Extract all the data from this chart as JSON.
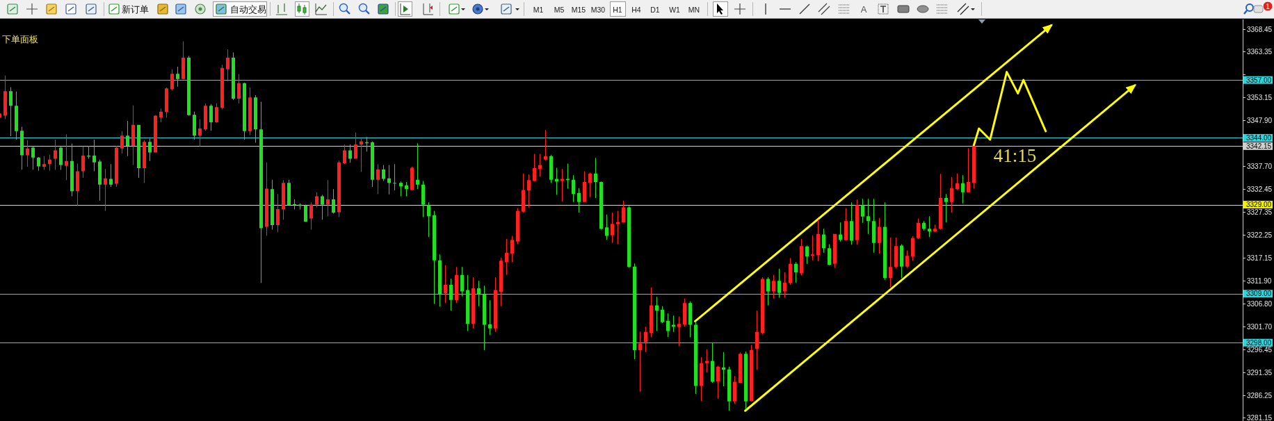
{
  "chart_data": [
    {
      "type": "other",
      "annotations": [
        "新订单",
        "自动交易",
        "M1",
        "M5",
        "M15",
        "M30",
        "H1",
        "H4",
        "D1",
        "W1",
        "MN",
        "A",
        "1"
      ]
    },
    {
      "type": "candlestick",
      "categories": [
        null,
        null,
        null,
        null,
        null,
        null,
        null,
        null,
        null,
        null,
        null,
        null,
        null,
        null,
        null,
        null,
        null,
        null,
        null,
        null,
        null,
        null,
        null,
        null,
        null,
        null,
        null,
        null,
        null,
        null,
        null,
        null,
        null,
        null,
        null,
        null,
        null,
        null,
        null,
        null,
        null,
        null,
        null,
        null,
        null,
        null,
        null,
        null,
        null,
        null,
        null,
        null,
        null,
        null,
        null,
        null,
        null,
        null,
        null,
        null,
        null,
        null,
        null,
        null,
        null,
        null,
        null,
        null,
        null,
        null,
        null,
        null,
        null,
        null,
        null,
        null,
        null,
        null,
        null,
        null,
        null,
        null,
        null,
        null,
        null,
        null,
        null,
        null,
        null,
        null,
        null,
        null,
        null,
        null,
        null,
        null,
        null,
        null,
        null,
        null,
        null,
        null,
        null,
        null,
        null,
        null,
        null,
        null,
        null,
        null,
        null,
        null,
        null,
        null,
        null,
        null,
        null,
        null,
        null,
        null,
        null,
        null,
        null,
        null,
        null,
        null,
        null,
        null,
        null,
        null,
        null,
        null,
        null,
        null,
        null,
        null,
        null,
        null,
        null,
        null,
        null,
        null,
        null,
        null,
        null,
        null,
        null,
        null,
        null,
        null,
        null,
        null,
        null,
        null,
        null,
        null,
        null,
        null,
        null,
        null,
        null,
        null,
        null,
        null,
        null,
        null,
        null,
        null,
        null,
        null,
        null,
        null,
        null,
        null,
        null,
        null,
        null,
        null,
        null,
        null,
        null,
        null,
        null,
        null,
        null,
        null,
        null,
        null,
        null,
        null,
        null,
        null,
        null,
        null,
        null,
        null,
        null,
        null,
        null,
        null,
        null,
        null,
        null,
        null,
        null,
        null,
        null,
        null,
        null,
        null,
        null,
        null,
        null,
        null,
        null,
        null,
        null,
        null,
        null,
        null,
        null,
        null,
        null,
        null
      ],
      "ohlc": [
        [
          3348.5,
          3349.5,
          3348.5,
          3349.5
        ],
        [
          3349.0,
          3358.0,
          3348.2,
          3354.5
        ],
        [
          3354.5,
          3355.4,
          3344.4,
          3351.2
        ],
        [
          3351.2,
          3354.4,
          3343.6,
          3345.5
        ],
        [
          3345.6,
          3346.5,
          3336.9,
          3340.1
        ],
        [
          3340.1,
          3343.5,
          3337.5,
          3341.6
        ],
        [
          3341.8,
          3342.1,
          3336.9,
          3339.6
        ],
        [
          3339.6,
          3339.7,
          3336.6,
          3337.6
        ],
        [
          3337.5,
          3339.9,
          3336.8,
          3338.1
        ],
        [
          3338.1,
          3340.2,
          3336.6,
          3339.1
        ],
        [
          3339.3,
          3343.6,
          3336.8,
          3341.2
        ],
        [
          3341.8,
          3342.0,
          3336.8,
          3337.9
        ],
        [
          3337.7,
          3344.8,
          3334.5,
          3338.8
        ],
        [
          3338.8,
          3342.7,
          3330.9,
          3332.0
        ],
        [
          3332.0,
          3338.2,
          3328.7,
          3336.5
        ],
        [
          3336.5,
          3342.1,
          3335.0,
          3340.0
        ],
        [
          3340.0,
          3342.2,
          3339.3,
          3339.8
        ],
        [
          3340.0,
          3343.6,
          3336.5,
          3338.5
        ],
        [
          3338.7,
          3339.1,
          3329.9,
          3333.5
        ],
        [
          3333.5,
          3337.0,
          3327.6,
          3334.9
        ],
        [
          3334.8,
          3338.1,
          3333.0,
          3333.5
        ],
        [
          3333.7,
          3342.2,
          3333.0,
          3341.8
        ],
        [
          3341.6,
          3345.5,
          3340.5,
          3344.5
        ],
        [
          3344.5,
          3347.8,
          3339.9,
          3342.2
        ],
        [
          3342.2,
          3351.3,
          3337.9,
          3346.9
        ],
        [
          3346.9,
          3346.9,
          3335.0,
          3337.2
        ],
        [
          3337.2,
          3343.5,
          3333.9,
          3343.1
        ],
        [
          3343.1,
          3343.8,
          3338.8,
          3340.7
        ],
        [
          3340.7,
          3349.1,
          3340.7,
          3349.0
        ],
        [
          3348.6,
          3350.6,
          3347.5,
          3349.9
        ],
        [
          3349.8,
          3355.3,
          3348.5,
          3355.1
        ],
        [
          3354.9,
          3359.4,
          3354.7,
          3358.4
        ],
        [
          3358.4,
          3360.0,
          3355.5,
          3357.2
        ],
        [
          3357.2,
          3365.7,
          3357.2,
          3362.0
        ],
        [
          3362.0,
          3362.4,
          3349.0,
          3349.1
        ],
        [
          3349.2,
          3349.9,
          3343.6,
          3344.5
        ],
        [
          3344.5,
          3348.2,
          3342.1,
          3346.1
        ],
        [
          3345.9,
          3351.7,
          3345.6,
          3351.2
        ],
        [
          3351.2,
          3351.6,
          3345.6,
          3347.5
        ],
        [
          3347.5,
          3351.8,
          3347.4,
          3350.9
        ],
        [
          3350.8,
          3360.4,
          3350.4,
          3359.7
        ],
        [
          3359.4,
          3363.9,
          3356.7,
          3362.0
        ],
        [
          3362.0,
          3363.2,
          3352.5,
          3352.8
        ],
        [
          3352.8,
          3358.3,
          3351.7,
          3356.3
        ],
        [
          3356.3,
          3356.4,
          3343.6,
          3345.5
        ],
        [
          3345.5,
          3355.3,
          3344.6,
          3353.1
        ],
        [
          3353.1,
          3353.6,
          3342.9,
          3345.9
        ],
        [
          3345.9,
          3352.1,
          3311.4,
          3323.7
        ],
        [
          3324.0,
          3338.5,
          3322.0,
          3332.6
        ],
        [
          3332.5,
          3334.6,
          3323.4,
          3324.4
        ],
        [
          3324.4,
          3331.4,
          3322.8,
          3328.0
        ],
        [
          3327.9,
          3334.5,
          3325.6,
          3333.9
        ],
        [
          3333.9,
          3334.6,
          3328.9,
          3328.9
        ],
        [
          3329.1,
          3330.2,
          3327.9,
          3328.9
        ],
        [
          3329.0,
          3329.3,
          3327.9,
          3328.7
        ],
        [
          3328.8,
          3329.0,
          3325.2,
          3325.2
        ],
        [
          3325.9,
          3329.5,
          3323.4,
          3329.0
        ],
        [
          3329.0,
          3331.8,
          3328.4,
          3330.9
        ],
        [
          3330.9,
          3331.2,
          3325.6,
          3329.0
        ],
        [
          3329.0,
          3334.5,
          3326.4,
          3330.2
        ],
        [
          3330.2,
          3332.5,
          3327.0,
          3327.2
        ],
        [
          3327.3,
          3338.9,
          3326.2,
          3338.5
        ],
        [
          3338.3,
          3342.5,
          3338.1,
          3341.2
        ],
        [
          3341.2,
          3342.5,
          3338.4,
          3339.3
        ],
        [
          3339.3,
          3345.2,
          3339.3,
          3342.5
        ],
        [
          3342.5,
          3343.8,
          3336.4,
          3343.2
        ],
        [
          3343.0,
          3344.2,
          3340.9,
          3342.8
        ],
        [
          3343.0,
          3343.2,
          3333.0,
          3334.6
        ],
        [
          3334.6,
          3338.1,
          3331.4,
          3336.9
        ],
        [
          3336.9,
          3337.9,
          3334.3,
          3334.8
        ],
        [
          3334.9,
          3337.9,
          3331.3,
          3333.9
        ],
        [
          3333.9,
          3338.1,
          3332.2,
          3333.8
        ],
        [
          3333.9,
          3334.2,
          3330.9,
          3333.1
        ],
        [
          3333.3,
          3334.1,
          3330.9,
          3332.5
        ],
        [
          3332.3,
          3337.5,
          3332.2,
          3337.3
        ],
        [
          3334.6,
          3342.8,
          3332.5,
          3333.5
        ],
        [
          3333.5,
          3334.3,
          3326.2,
          3329.0
        ],
        [
          3328.9,
          3329.5,
          3321.7,
          3326.4
        ],
        [
          3326.6,
          3327.6,
          3306.7,
          3316.5
        ],
        [
          3316.5,
          3317.8,
          3306.1,
          3308.9
        ],
        [
          3309.1,
          3315.4,
          3306.9,
          3311.0
        ],
        [
          3311.0,
          3312.4,
          3305.2,
          3307.6
        ],
        [
          3307.5,
          3315.0,
          3306.9,
          3313.2
        ],
        [
          3313.2,
          3315.0,
          3308.4,
          3309.5
        ],
        [
          3309.8,
          3313.2,
          3300.6,
          3302.2
        ],
        [
          3302.2,
          3312.7,
          3301.2,
          3310.2
        ],
        [
          3310.2,
          3311.9,
          3306.2,
          3308.9
        ],
        [
          3308.8,
          3310.8,
          3296.3,
          3302.0
        ],
        [
          3302.1,
          3307.5,
          3299.7,
          3301.2
        ],
        [
          3301.2,
          3312.7,
          3300.4,
          3309.8
        ],
        [
          3309.4,
          3317.1,
          3306.2,
          3316.4
        ],
        [
          3316.1,
          3321.3,
          3313.2,
          3318.2
        ],
        [
          3318.0,
          3322.0,
          3316.1,
          3321.1
        ],
        [
          3320.7,
          3328.2,
          3320.1,
          3327.6
        ],
        [
          3327.4,
          3336.0,
          3327.2,
          3332.3
        ],
        [
          3332.2,
          3335.8,
          3328.3,
          3334.5
        ],
        [
          3334.3,
          3340.4,
          3334.2,
          3337.2
        ],
        [
          3337.0,
          3340.4,
          3335.3,
          3337.9
        ],
        [
          3339.1,
          3345.8,
          3338.9,
          3339.9
        ],
        [
          3339.9,
          3340.2,
          3333.9,
          3334.6
        ],
        [
          3334.8,
          3337.3,
          3331.2,
          3334.2
        ],
        [
          3334.3,
          3337.0,
          3329.7,
          3334.8
        ],
        [
          3334.8,
          3338.2,
          3332.6,
          3334.5
        ],
        [
          3334.6,
          3335.6,
          3329.6,
          3331.4
        ],
        [
          3331.6,
          3332.7,
          3327.2,
          3329.6
        ],
        [
          3329.6,
          3336.5,
          3329.6,
          3334.1
        ],
        [
          3333.9,
          3336.2,
          3330.7,
          3336.0
        ],
        [
          3336.0,
          3339.5,
          3330.5,
          3334.1
        ],
        [
          3334.1,
          3334.2,
          3323.4,
          3323.6
        ],
        [
          3323.9,
          3326.8,
          3321.1,
          3322.0
        ],
        [
          3322.1,
          3327.2,
          3320.4,
          3324.7
        ],
        [
          3324.6,
          3327.6,
          3320.1,
          3325.1
        ],
        [
          3325.0,
          3329.9,
          3324.9,
          3328.4
        ],
        [
          3328.4,
          3328.7,
          3314.8,
          3315.0
        ],
        [
          3315.1,
          3315.8,
          3294.3,
          3296.3
        ],
        [
          3296.3,
          3300.5,
          3287.0,
          3297.8
        ],
        [
          3298.2,
          3301.6,
          3295.9,
          3300.4
        ],
        [
          3300.2,
          3310.4,
          3299.3,
          3306.4
        ],
        [
          3306.4,
          3308.3,
          3300.6,
          3305.2
        ],
        [
          3305.4,
          3306.2,
          3302.4,
          3302.6
        ],
        [
          3302.9,
          3304.6,
          3299.3,
          3300.6
        ],
        [
          3302.0,
          3304.1,
          3300.4,
          3301.6
        ],
        [
          3301.5,
          3303.9,
          3297.2,
          3302.2
        ],
        [
          3302.1,
          3307.9,
          3301.6,
          3306.9
        ],
        [
          3306.9,
          3307.3,
          3299.2,
          3302.0
        ],
        [
          3302.0,
          3302.8,
          3286.5,
          3288.3
        ],
        [
          3288.3,
          3294.7,
          3284.9,
          3293.4
        ],
        [
          3293.4,
          3296.5,
          3291.3,
          3293.9
        ],
        [
          3293.9,
          3297.9,
          3289.0,
          3289.2
        ],
        [
          3289.3,
          3292.8,
          3285.4,
          3292.6
        ],
        [
          3292.4,
          3295.9,
          3288.2,
          3291.9
        ],
        [
          3292.0,
          3292.6,
          3282.7,
          3284.8
        ],
        [
          3284.8,
          3290.5,
          3284.3,
          3289.2
        ],
        [
          3289.0,
          3295.8,
          3288.9,
          3295.5
        ],
        [
          3295.5,
          3296.0,
          3283.1,
          3284.8
        ],
        [
          3284.9,
          3297.5,
          3284.8,
          3296.3
        ],
        [
          3296.6,
          3305.2,
          3291.9,
          3300.4
        ],
        [
          3300.2,
          3312.7,
          3299.9,
          3312.3
        ],
        [
          3312.3,
          3312.7,
          3306.4,
          3309.5
        ],
        [
          3309.5,
          3313.2,
          3307.9,
          3311.9
        ],
        [
          3311.9,
          3314.6,
          3308.1,
          3309.2
        ],
        [
          3309.5,
          3313.8,
          3308.1,
          3311.5
        ],
        [
          3311.4,
          3317.0,
          3311.0,
          3315.7
        ],
        [
          3315.7,
          3316.1,
          3311.5,
          3313.8
        ],
        [
          3313.6,
          3321.3,
          3313.1,
          3319.7
        ],
        [
          3319.6,
          3319.8,
          3315.7,
          3317.4
        ],
        [
          3317.5,
          3322.1,
          3316.5,
          3317.8
        ],
        [
          3317.7,
          3325.6,
          3316.3,
          3322.4
        ],
        [
          3322.3,
          3323.6,
          3318.2,
          3319.2
        ],
        [
          3319.2,
          3320.1,
          3315.4,
          3315.5
        ],
        [
          3315.7,
          3322.4,
          3314.8,
          3322.4
        ],
        [
          3322.3,
          3325.0,
          3320.7,
          3321.1
        ],
        [
          3321.0,
          3328.2,
          3320.9,
          3325.3
        ],
        [
          3325.3,
          3329.5,
          3320.0,
          3320.9
        ],
        [
          3321.0,
          3330.2,
          3320.0,
          3328.9
        ],
        [
          3328.9,
          3330.3,
          3324.9,
          3326.3
        ],
        [
          3326.4,
          3330.3,
          3322.4,
          3325.3
        ],
        [
          3325.3,
          3330.3,
          3318.2,
          3320.4
        ],
        [
          3320.4,
          3326.0,
          3318.0,
          3324.0
        ],
        [
          3324.0,
          3329.5,
          3312.1,
          3312.5
        ],
        [
          3312.5,
          3321.6,
          3310.4,
          3315.0
        ],
        [
          3315.0,
          3321.6,
          3314.7,
          3319.7
        ],
        [
          3319.8,
          3320.1,
          3312.5,
          3315.1
        ],
        [
          3315.1,
          3318.7,
          3314.8,
          3317.5
        ],
        [
          3317.4,
          3321.9,
          3316.4,
          3321.5
        ],
        [
          3321.5,
          3325.9,
          3321.3,
          3324.9
        ],
        [
          3324.9,
          3325.3,
          3323.2,
          3323.6
        ],
        [
          3323.6,
          3326.4,
          3321.7,
          3323.0
        ],
        [
          3323.0,
          3324.5,
          3322.8,
          3323.6
        ],
        [
          3323.6,
          3335.9,
          3323.4,
          3330.5
        ],
        [
          3330.5,
          3331.4,
          3325.0,
          3329.6
        ],
        [
          3329.6,
          3335.2,
          3327.2,
          3332.7
        ],
        [
          3332.5,
          3336.0,
          3332.3,
          3333.8
        ],
        [
          3333.8,
          3335.6,
          3329.3,
          3331.8
        ],
        [
          3331.8,
          3341.7,
          3331.8,
          3334.1
        ],
        [
          3333.9,
          3342.15,
          3332.6,
          3342.15
        ],
        null,
        null,
        null,
        null,
        null,
        null,
        null,
        null,
        null,
        null,
        null,
        null,
        null,
        null,
        null,
        null,
        null,
        null,
        null,
        null,
        null,
        null,
        null,
        null,
        null,
        null,
        null,
        null,
        null,
        null,
        null,
        null,
        null,
        null,
        null,
        null,
        null,
        null,
        null,
        null,
        null,
        null,
        null,
        null,
        null,
        null,
        null,
        null
      ],
      "colors": [
        "#ff2020",
        "#ff2020",
        "#20e020",
        "#20e020",
        "#20e020",
        "#ff2020",
        "#20e020",
        "#20e020",
        "#ff2020",
        "#ff2020",
        "#ff2020",
        "#20e020",
        "#ff2020",
        "#20e020",
        "#ff2020",
        "#ff2020",
        "#20e020",
        "#20e020",
        "#20e020",
        "#ff2020",
        "#20e020",
        "#ff2020",
        "#ff2020",
        "#20e020",
        "#ff2020",
        "#20e020",
        "#ff2020",
        "#20e020",
        "#ff2020",
        "#ff2020",
        "#ff2020",
        "#ff2020",
        "#20e020",
        "#ff2020",
        "#20e020",
        "#20e020",
        "#ff2020",
        "#ff2020",
        "#20e020",
        "#ff2020",
        "#ff2020",
        "#ff2020",
        "#20e020",
        "#ff2020",
        "#20e020",
        "#ff2020",
        "#20e020",
        "#20e020",
        "#ff2020",
        "#20e020",
        "#ff2020",
        "#ff2020",
        "#20e020",
        "#20e020",
        "#20e020",
        "#20e020",
        "#ff2020",
        "#ff2020",
        "#20e020",
        "#ff2020",
        "#20e020",
        "#ff2020",
        "#ff2020",
        "#20e020",
        "#ff2020",
        "#ff2020",
        "#20e020",
        "#20e020",
        "#ff2020",
        "#20e020",
        "#20e020",
        "#20e020",
        "#20e020",
        "#20e020",
        "#ff2020",
        "#20e020",
        "#20e020",
        "#20e020",
        "#20e020",
        "#20e020",
        "#ff2020",
        "#20e020",
        "#ff2020",
        "#20e020",
        "#20e020",
        "#ff2020",
        "#20e020",
        "#20e020",
        "#20e020",
        "#ff2020",
        "#ff2020",
        "#ff2020",
        "#ff2020",
        "#ff2020",
        "#ff2020",
        "#ff2020",
        "#ff2020",
        "#ff2020",
        "#ff2020",
        "#20e020",
        "#20e020",
        "#ff2020",
        "#20e020",
        "#20e020",
        "#20e020",
        "#ff2020",
        "#ff2020",
        "#20e020",
        "#20e020",
        "#20e020",
        "#ff2020",
        "#ff2020",
        "#ff2020",
        "#20e020",
        "#20e020",
        "#ff2020",
        "#ff2020",
        "#ff2020",
        "#20e020",
        "#20e020",
        "#20e020",
        "#20e020",
        "#ff2020",
        "#ff2020",
        "#20e020",
        "#20e020",
        "#ff2020",
        "#ff2020",
        "#20e020",
        "#ff2020",
        "#20e020",
        "#20e020",
        "#ff2020",
        "#ff2020",
        "#20e020",
        "#ff2020",
        "#ff2020",
        "#ff2020",
        "#20e020",
        "#ff2020",
        "#20e020",
        "#ff2020",
        "#ff2020",
        "#20e020",
        "#ff2020",
        "#20e020",
        "#ff2020",
        "#ff2020",
        "#20e020",
        "#20e020",
        "#ff2020",
        "#20e020",
        "#ff2020",
        "#20e020",
        "#ff2020",
        "#20e020",
        "#20e020",
        "#20e020",
        "#ff2020",
        "#20e020",
        "#ff2020",
        "#ff2020",
        "#20e020",
        "#ff2020",
        "#ff2020",
        "#ff2020",
        "#20e020",
        "#20e020",
        "#ff2020",
        "#ff2020",
        "#20e020",
        "#ff2020",
        "#ff2020",
        "#20e020",
        "#ff2020",
        "#ff2020",
        null,
        null,
        null,
        null,
        null,
        null,
        null,
        null,
        null,
        null,
        null,
        null,
        null,
        null,
        null,
        null,
        null,
        null,
        null,
        null,
        null,
        null,
        null,
        null,
        null,
        null,
        null,
        null,
        null,
        null,
        null,
        null,
        null,
        null,
        null,
        null,
        null,
        null,
        null,
        null,
        null,
        null,
        null,
        null,
        null,
        null,
        null,
        null
      ],
      "ylim": [
        3280.4,
        3370.6
      ],
      "yticks": [
        3368.45,
        3363.35,
        {
          "value": 3358.25,
          "label": null
        },
        3353.15,
        {
          "value": 3347.9,
          "label": "3347.90"
        },
        {
          "value": 3342.8,
          "label": null
        },
        {
          "value": 3337.7,
          "label": "3337.70"
        },
        3332.45,
        3327.35,
        3322.25,
        3317.15,
        {
          "value": 3311.9,
          "label": "3311.90"
        },
        {
          "value": 3306.8,
          "label": "3306.80"
        },
        {
          "value": 3301.7,
          "label": "3301.70"
        },
        3296.45,
        3291.35,
        3286.25,
        3281.15
      ],
      "tick_labels": "y",
      "ref_lines": [
        {
          "axis": "y",
          "value": 3357,
          "label": "3357.00",
          "color": "#30d5dc"
        },
        {
          "axis": "y",
          "value": 3344,
          "label": "3344.00",
          "color": "#30d5dc"
        },
        {
          "axis": "y",
          "value": 3342.15,
          "label": "3342.15",
          "color": "#d0d0d0"
        },
        {
          "axis": "y",
          "value": 3329,
          "label": "3329.00",
          "color": "#f0f000"
        },
        {
          "axis": "y",
          "value": 3309,
          "label": "3309.00",
          "color": "#30d5dc"
        },
        {
          "axis": "y",
          "value": 3298,
          "label": "3298.00",
          "color": "#30d5dc"
        }
      ],
      "series": [
        {
          "type": "line",
          "color": "#ffff00",
          "values": [
            null,
            null,
            null,
            null,
            null,
            null,
            null,
            null,
            null,
            null,
            null,
            null,
            null,
            null,
            null,
            null,
            null,
            null,
            null,
            null,
            null,
            null,
            null,
            null,
            null,
            null,
            null,
            null,
            null,
            null,
            null,
            null,
            null,
            null,
            null,
            null,
            null,
            null,
            null,
            null,
            null,
            null,
            null,
            null,
            null,
            null,
            null,
            null,
            null,
            null,
            null,
            null,
            null,
            null,
            null,
            null,
            null,
            null,
            null,
            null,
            null,
            null,
            null,
            null,
            null,
            null,
            null,
            null,
            null,
            null,
            null,
            null,
            null,
            null,
            null,
            null,
            null,
            null,
            null,
            null,
            null,
            null,
            null,
            null,
            null,
            null,
            null,
            null,
            null,
            null,
            null,
            null,
            null,
            null,
            null,
            null,
            null,
            null,
            null,
            null,
            null,
            null,
            null,
            null,
            null,
            null,
            null,
            null,
            null,
            null,
            null,
            null,
            null,
            null,
            null,
            null,
            null,
            null,
            null,
            null,
            null,
            null,
            null,
            null,
            null,
            3302.8,
            null,
            null,
            null,
            null,
            null,
            null,
            null,
            null,
            null,
            null,
            null,
            null,
            null,
            null,
            null,
            null,
            null,
            null,
            null,
            null,
            null,
            null,
            null,
            null,
            null,
            null,
            null,
            null,
            null,
            null,
            null,
            null,
            null,
            null,
            null,
            null,
            null,
            null,
            null,
            null,
            null,
            null,
            null,
            null,
            null,
            null,
            null,
            null,
            null,
            null,
            null,
            null,
            null,
            null,
            null,
            null,
            null,
            null,
            null,
            null,
            null,
            null,
            null,
            3369.3,
            null,
            null,
            null,
            null,
            null,
            null,
            null,
            null,
            null,
            null,
            null,
            null,
            null,
            null,
            null,
            null,
            null,
            null,
            null,
            null,
            null,
            null,
            null,
            null,
            null,
            null,
            null,
            null,
            null,
            null,
            null,
            null,
            null,
            null
          ]
        },
        {
          "type": "line",
          "color": "#ffff00",
          "values": [
            null,
            null,
            null,
            null,
            null,
            null,
            null,
            null,
            null,
            null,
            null,
            null,
            null,
            null,
            null,
            null,
            null,
            null,
            null,
            null,
            null,
            null,
            null,
            null,
            null,
            null,
            null,
            null,
            null,
            null,
            null,
            null,
            null,
            null,
            null,
            null,
            null,
            null,
            null,
            null,
            null,
            null,
            null,
            null,
            null,
            null,
            null,
            null,
            null,
            null,
            null,
            null,
            null,
            null,
            null,
            null,
            null,
            null,
            null,
            null,
            null,
            null,
            null,
            null,
            null,
            null,
            null,
            null,
            null,
            null,
            null,
            null,
            null,
            null,
            null,
            null,
            null,
            null,
            null,
            null,
            null,
            null,
            null,
            null,
            null,
            null,
            null,
            null,
            null,
            null,
            null,
            null,
            null,
            null,
            null,
            null,
            null,
            null,
            null,
            null,
            null,
            null,
            null,
            null,
            null,
            null,
            null,
            null,
            null,
            null,
            null,
            null,
            null,
            null,
            null,
            null,
            null,
            null,
            null,
            null,
            null,
            null,
            null,
            null,
            null,
            null,
            null,
            null,
            null,
            null,
            null,
            null,
            null,
            null,
            3282.7,
            null,
            null,
            null,
            null,
            null,
            null,
            null,
            null,
            null,
            null,
            null,
            null,
            null,
            null,
            null,
            null,
            null,
            null,
            null,
            null,
            null,
            null,
            null,
            null,
            null,
            null,
            null,
            null,
            null,
            null,
            null,
            null,
            null,
            null,
            null,
            null,
            null,
            null,
            null,
            null,
            null,
            null,
            null,
            null,
            null,
            null,
            null,
            null,
            null,
            null,
            null,
            null,
            null,
            null,
            null,
            null,
            null,
            null,
            null,
            null,
            null,
            null,
            null,
            null,
            null,
            null,
            null,
            null,
            null,
            3355.8,
            null,
            null,
            null,
            null,
            null,
            null,
            null,
            null,
            null,
            null,
            null,
            null,
            null,
            null,
            null,
            null,
            null,
            null,
            null
          ]
        },
        {
          "type": "line",
          "color": "#ffff00",
          "values": [
            null,
            null,
            null,
            null,
            null,
            null,
            null,
            null,
            null,
            null,
            null,
            null,
            null,
            null,
            null,
            null,
            null,
            null,
            null,
            null,
            null,
            null,
            null,
            null,
            null,
            null,
            null,
            null,
            null,
            null,
            null,
            null,
            null,
            null,
            null,
            null,
            null,
            null,
            null,
            null,
            null,
            null,
            null,
            null,
            null,
            null,
            null,
            null,
            null,
            null,
            null,
            null,
            null,
            null,
            null,
            null,
            null,
            null,
            null,
            null,
            null,
            null,
            null,
            null,
            null,
            null,
            null,
            null,
            null,
            null,
            null,
            null,
            null,
            null,
            null,
            null,
            null,
            null,
            null,
            null,
            null,
            null,
            null,
            null,
            null,
            null,
            null,
            null,
            null,
            null,
            null,
            null,
            null,
            null,
            null,
            null,
            null,
            null,
            null,
            null,
            null,
            null,
            null,
            null,
            null,
            null,
            null,
            null,
            null,
            null,
            null,
            null,
            null,
            null,
            null,
            null,
            null,
            null,
            null,
            null,
            null,
            null,
            null,
            null,
            null,
            null,
            null,
            null,
            null,
            null,
            null,
            null,
            null,
            null,
            null,
            null,
            null,
            null,
            null,
            null,
            null,
            null,
            null,
            null,
            null,
            null,
            null,
            null,
            null,
            null,
            null,
            null,
            null,
            null,
            null,
            null,
            null,
            null,
            null,
            null,
            null,
            null,
            null,
            null,
            null,
            null,
            null,
            null,
            null,
            null,
            null,
            null,
            null,
            null,
            null,
            3342.0,
            3346.1,
            null,
            3343.6,
            null,
            null,
            3358.8,
            null,
            3354.0,
            3357.0,
            null,
            null,
            null,
            3345.5,
            null,
            null,
            null,
            null,
            null,
            null,
            null,
            null,
            null,
            null,
            null,
            null,
            null,
            null,
            null,
            null,
            null,
            null,
            null,
            null,
            null,
            null,
            null,
            null,
            null,
            null,
            null,
            null,
            null,
            null,
            null,
            null,
            null,
            null,
            null
          ]
        }
      ],
      "annotations": [
        "下单面板",
        "41:15"
      ]
    }
  ]
}
